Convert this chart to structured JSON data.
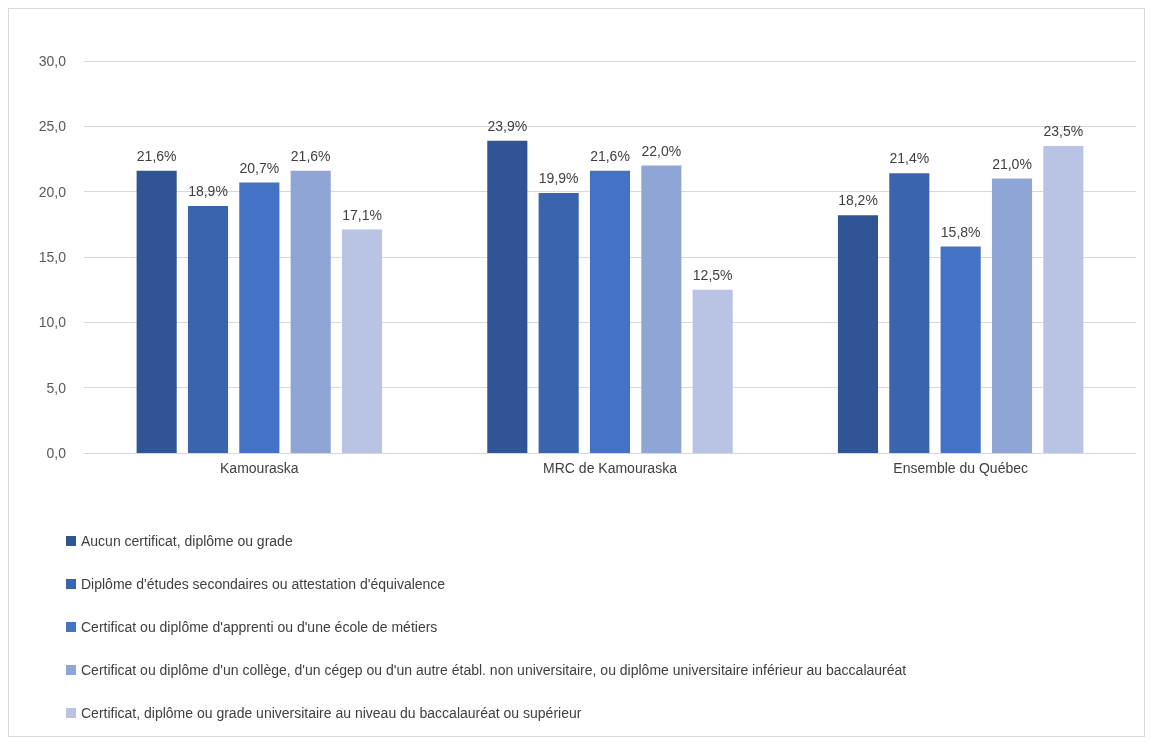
{
  "chart_data": {
    "type": "bar",
    "categories": [
      "Kamouraska",
      "MRC de Kamouraska",
      "Ensemble du Québec"
    ],
    "series": [
      {
        "name": "Aucun certificat, diplôme ou grade",
        "color": "#2f5597",
        "values": [
          21.6,
          23.9,
          18.2
        ],
        "value_labels": [
          "21,6%",
          "23,9%",
          "18,2%"
        ]
      },
      {
        "name": "Diplôme d'études secondaires ou attestation d'équivalence",
        "color": "#3a64ad",
        "values": [
          18.9,
          19.9,
          21.4
        ],
        "value_labels": [
          "18,9%",
          "19,9%",
          "21,4%"
        ]
      },
      {
        "name": "Certificat ou diplôme d'apprenti ou d'une école de métiers",
        "color": "#4472c4",
        "values": [
          20.7,
          21.6,
          15.8
        ],
        "value_labels": [
          "20,7%",
          "21,6%",
          "15,8%"
        ]
      },
      {
        "name": "Certificat ou diplôme d'un collège, d'un cégep ou d'un autre établ. non universitaire, ou diplôme universitaire inférieur au baccalauréat",
        "color": "#8fa5d6",
        "values": [
          21.6,
          22.0,
          21.0
        ],
        "value_labels": [
          "21,6%",
          "22,0%",
          "21,0%"
        ]
      },
      {
        "name": "Certificat, diplôme ou grade universitaire au niveau du baccalauréat ou supérieur",
        "color": "#b9c3e3",
        "values": [
          17.1,
          12.5,
          23.5
        ],
        "value_labels": [
          "17,1%",
          "12,5%",
          "23,5%"
        ]
      }
    ],
    "ylim": [
      0,
      30
    ],
    "yticks": [
      {
        "value": 0,
        "label": "0,0"
      },
      {
        "value": 5,
        "label": "5,0"
      },
      {
        "value": 10,
        "label": "10,0"
      },
      {
        "value": 15,
        "label": "15,0"
      },
      {
        "value": 20,
        "label": "20,0"
      },
      {
        "value": 25,
        "label": "25,0"
      },
      {
        "value": 30,
        "label": "30,0"
      }
    ],
    "grid": "y",
    "legend": "bottom"
  }
}
